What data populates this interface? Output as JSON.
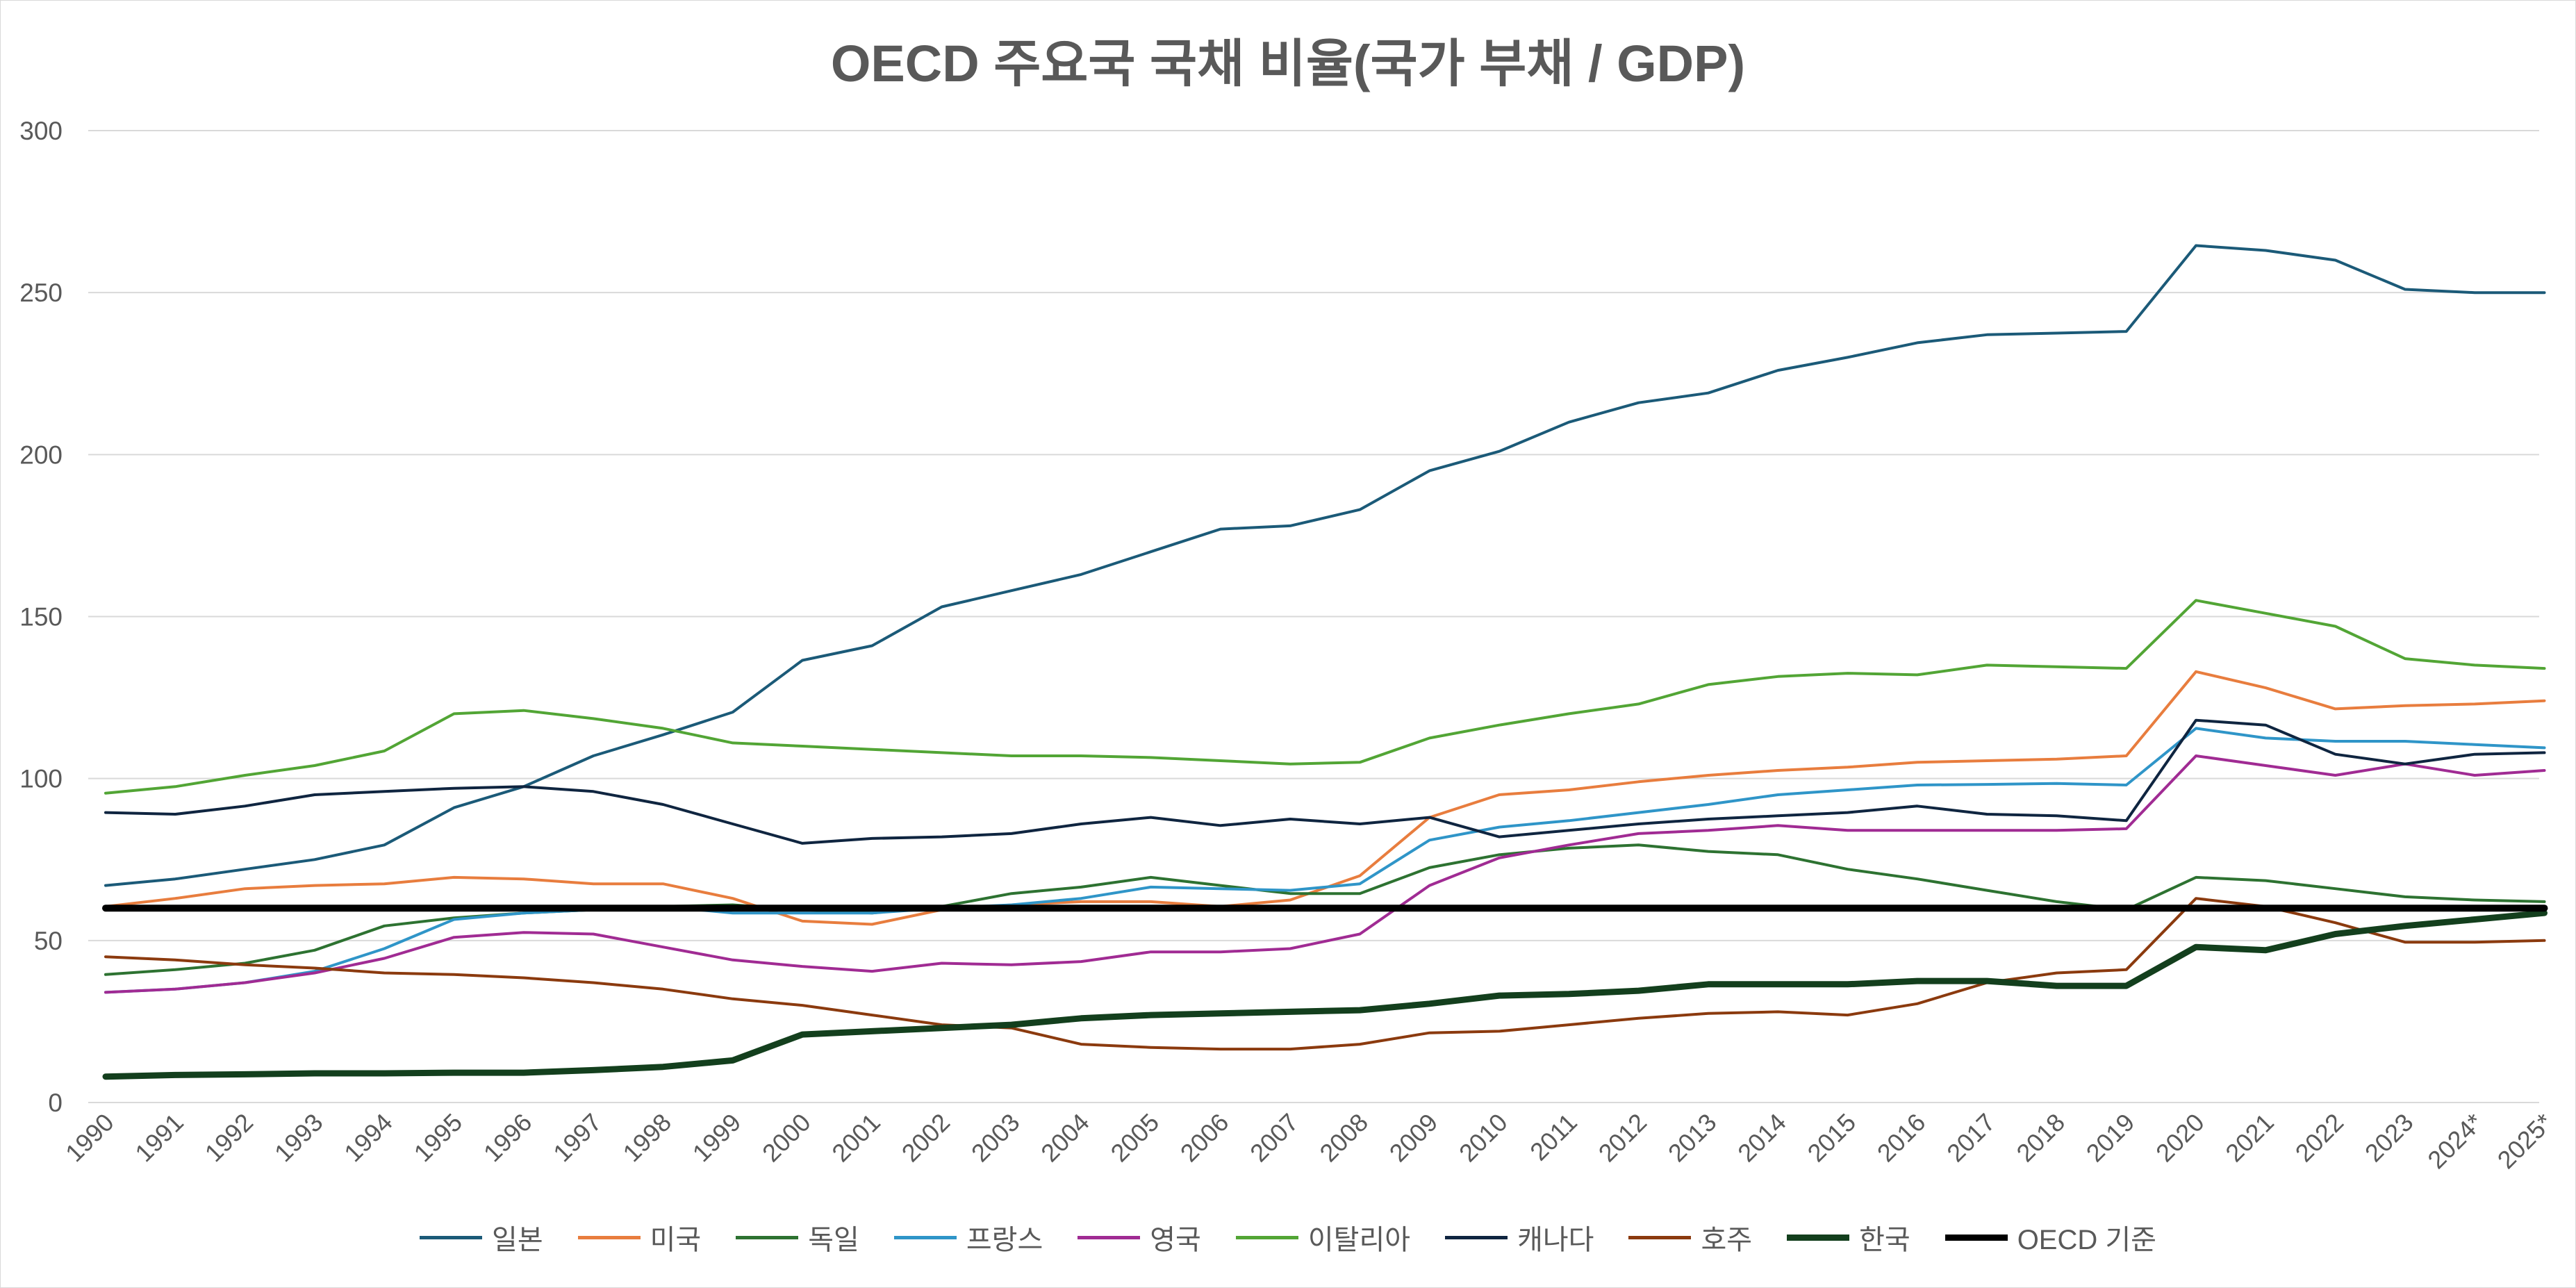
{
  "chart_data": {
    "type": "line",
    "title": "OECD 주요국 국채 비율(국가 부채 / GDP)",
    "xlabel": "",
    "ylabel": "",
    "ylim": [
      0,
      300
    ],
    "yticks": [
      0,
      50,
      100,
      150,
      200,
      250,
      300
    ],
    "grid": true,
    "legend_position": "bottom",
    "categories": [
      "1990",
      "1991",
      "1992",
      "1993",
      "1994",
      "1995",
      "1996",
      "1997",
      "1998",
      "1999",
      "2000",
      "2001",
      "2002",
      "2003",
      "2004",
      "2005",
      "2006",
      "2007",
      "2008",
      "2009",
      "2010",
      "2011",
      "2012",
      "2013",
      "2014",
      "2015",
      "2016",
      "2017",
      "2018",
      "2019",
      "2020",
      "2021",
      "2022",
      "2023",
      "2024*",
      "2025*"
    ],
    "series": [
      {
        "name": "일본",
        "color": "#1b5a78",
        "width": 4,
        "values": [
          67,
          69,
          72,
          75,
          79.5,
          91,
          97.5,
          107,
          113.5,
          120.5,
          136.5,
          141,
          153,
          158,
          163,
          170,
          177,
          178,
          183,
          195,
          201,
          210,
          216,
          219,
          226,
          230,
          234.5,
          237,
          237.5,
          238,
          264.5,
          263,
          260,
          251,
          250,
          250
        ]
      },
      {
        "name": "미국",
        "color": "#e87d3e",
        "width": 4,
        "values": [
          60.5,
          63,
          66,
          67,
          67.5,
          69.5,
          69,
          67.5,
          67.5,
          63,
          56,
          55,
          59.5,
          61,
          62,
          62,
          60.5,
          62.5,
          70,
          88,
          95,
          96.5,
          99,
          101,
          102.5,
          103.5,
          105,
          105.5,
          106,
          107,
          133,
          128,
          121.5,
          122.5,
          123,
          124
        ]
      },
      {
        "name": "독일",
        "color": "#2d7231",
        "width": 4,
        "values": [
          39.5,
          41,
          43,
          47,
          54.5,
          57,
          58.5,
          59.5,
          60.5,
          61,
          59.5,
          58.5,
          60.5,
          64.5,
          66.5,
          69.5,
          67,
          64.5,
          64.5,
          72.5,
          76.5,
          78.5,
          79.5,
          77.5,
          76.5,
          72,
          69,
          65.5,
          62,
          59.5,
          69.5,
          68.5,
          66,
          63.5,
          62.5,
          62
        ]
      },
      {
        "name": "프랑스",
        "color": "#2f95c8",
        "width": 4,
        "values": [
          34,
          35,
          37,
          40.5,
          47.5,
          56.5,
          58.5,
          59.5,
          60.5,
          58.5,
          58.5,
          58.5,
          60,
          61,
          63,
          66.5,
          66,
          65.5,
          67.5,
          81,
          85,
          87,
          89.5,
          92,
          95,
          96.5,
          98,
          98.2,
          98.5,
          98,
          115.5,
          112.5,
          111.5,
          111.5,
          110.5,
          109.5
        ]
      },
      {
        "name": "영국",
        "color": "#a02b93",
        "width": 4,
        "values": [
          34,
          35,
          37,
          40,
          44.5,
          51,
          52.5,
          52,
          48,
          44,
          42,
          40.5,
          43,
          42.5,
          43.5,
          46.5,
          46.5,
          47.5,
          52,
          67,
          75.5,
          79.5,
          83,
          84,
          85.5,
          84,
          84,
          84,
          84,
          84.5,
          107,
          104,
          101,
          104.5,
          101,
          102.5
        ]
      },
      {
        "name": "이탈리아",
        "color": "#52a535",
        "width": 4,
        "values": [
          95.5,
          97.5,
          101,
          104,
          108.5,
          120,
          121,
          118.5,
          115.5,
          111,
          110,
          109,
          108,
          107,
          107,
          106.5,
          105.5,
          104.5,
          105,
          112.5,
          116.5,
          120,
          123,
          129,
          131.5,
          132.5,
          132,
          135,
          134.5,
          134,
          155,
          151,
          147,
          137,
          135,
          134
        ]
      },
      {
        "name": "캐나다",
        "color": "#0f2540",
        "width": 4,
        "values": [
          89.5,
          89,
          91.5,
          95,
          96,
          97,
          97.5,
          96,
          92,
          86,
          80,
          81.5,
          82,
          83,
          86,
          88,
          85.5,
          87.5,
          86,
          88,
          82,
          84,
          86,
          87.5,
          88.5,
          89.5,
          91.5,
          89,
          88.5,
          87,
          118,
          116.5,
          107.5,
          104.5,
          107.5,
          108
        ]
      },
      {
        "name": "호주",
        "color": "#8b3a0e",
        "width": 4,
        "values": [
          45,
          44,
          42.5,
          41.5,
          40,
          39.5,
          38.5,
          37,
          35,
          32,
          30,
          27,
          24,
          23,
          18,
          17,
          16.5,
          16.5,
          18,
          21.5,
          22,
          24,
          26,
          27.5,
          28,
          27,
          30.5,
          37,
          40,
          41,
          63,
          60.5,
          55.5,
          49.5,
          49.5,
          50
        ]
      },
      {
        "name": "한국",
        "color": "#133f1d",
        "width": 9,
        "values": [
          8,
          8.5,
          8.7,
          9,
          9,
          9.2,
          9.2,
          10,
          11,
          13,
          21,
          22,
          23,
          24,
          26,
          27,
          27.5,
          28,
          28.5,
          30.5,
          33,
          33.5,
          34.5,
          36.5,
          36.5,
          36.5,
          37.5,
          37.5,
          36,
          36,
          48,
          47,
          52,
          54.5,
          56.5,
          58.5
        ]
      },
      {
        "name": "OECD 기준",
        "color": "#000000",
        "width": 10,
        "values": [
          60,
          60,
          60,
          60,
          60,
          60,
          60,
          60,
          60,
          60,
          60,
          60,
          60,
          60,
          60,
          60,
          60,
          60,
          60,
          60,
          60,
          60,
          60,
          60,
          60,
          60,
          60,
          60,
          60,
          60,
          60,
          60,
          60,
          60,
          60,
          60
        ]
      }
    ]
  }
}
